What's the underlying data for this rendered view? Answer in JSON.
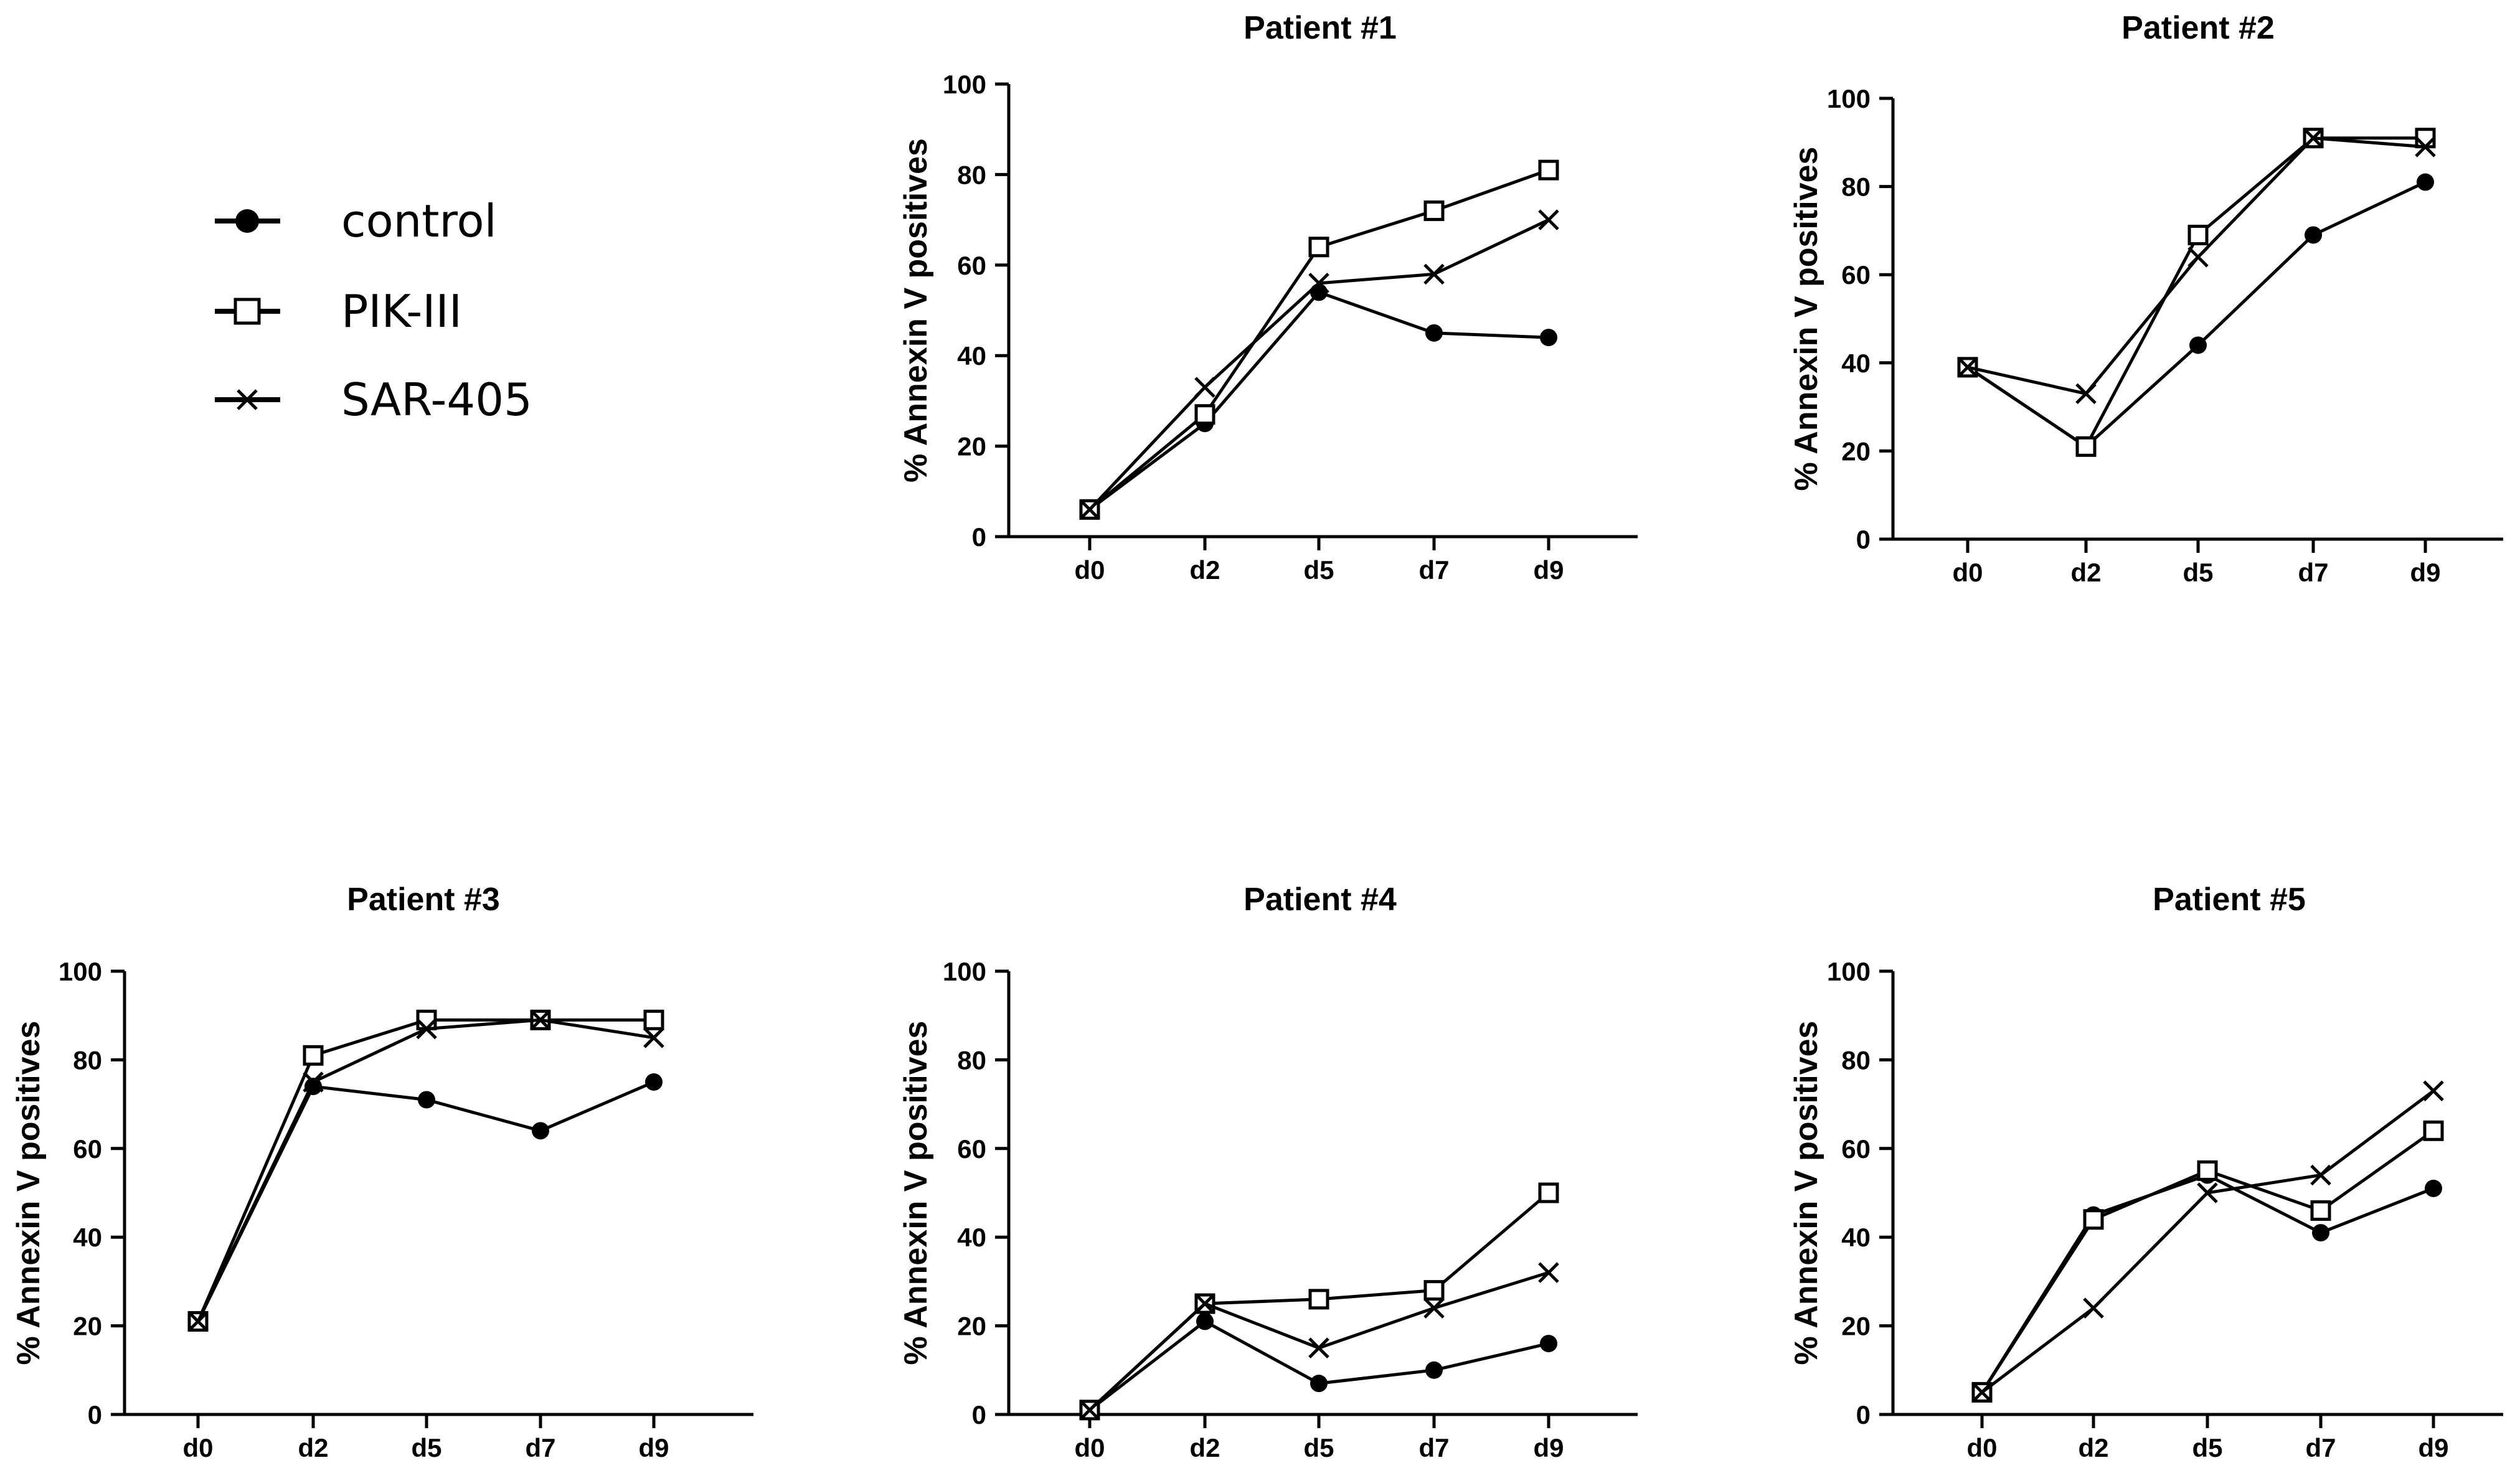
{
  "legend": [
    {
      "name": "control",
      "marker": "circle"
    },
    {
      "name": "PIK-III",
      "marker": "square"
    },
    {
      "name": "SAR-405",
      "marker": "x"
    }
  ],
  "chart_data": [
    {
      "type": "line",
      "title": "Patient #1",
      "xlabel": "",
      "ylabel": "% Annexin V positives",
      "categories": [
        "d0",
        "d2",
        "d5",
        "d7",
        "d9"
      ],
      "ylim": [
        0,
        100
      ],
      "yticks": [
        0,
        20,
        40,
        60,
        80,
        100
      ],
      "series": [
        {
          "name": "control",
          "values": [
            6,
            25,
            54,
            45,
            44
          ]
        },
        {
          "name": "PIK-III",
          "values": [
            6,
            27,
            64,
            72,
            81
          ]
        },
        {
          "name": "SAR-405",
          "values": [
            6,
            33,
            56,
            58,
            70
          ]
        }
      ]
    },
    {
      "type": "line",
      "title": "Patient #2",
      "xlabel": "",
      "ylabel": "% Annexin V positives",
      "categories": [
        "d0",
        "d2",
        "d5",
        "d7",
        "d9"
      ],
      "ylim": [
        0,
        100
      ],
      "yticks": [
        0,
        20,
        40,
        60,
        80,
        100
      ],
      "series": [
        {
          "name": "control",
          "values": [
            39,
            21,
            44,
            69,
            81
          ]
        },
        {
          "name": "PIK-III",
          "values": [
            39,
            21,
            69,
            91,
            91
          ]
        },
        {
          "name": "SAR-405",
          "values": [
            39,
            33,
            64,
            91,
            89
          ]
        }
      ]
    },
    {
      "type": "line",
      "title": "Patient #3",
      "xlabel": "",
      "ylabel": "% Annexin V positives",
      "categories": [
        "d0",
        "d2",
        "d5",
        "d7",
        "d9"
      ],
      "ylim": [
        0,
        100
      ],
      "yticks": [
        0,
        20,
        40,
        60,
        80,
        100
      ],
      "series": [
        {
          "name": "control",
          "values": [
            21,
            74,
            71,
            64,
            75
          ]
        },
        {
          "name": "PIK-III",
          "values": [
            21,
            81,
            89,
            89,
            89
          ]
        },
        {
          "name": "SAR-405",
          "values": [
            21,
            75,
            87,
            89,
            85
          ]
        }
      ]
    },
    {
      "type": "line",
      "title": "Patient #4",
      "xlabel": "",
      "ylabel": "% Annexin V positives",
      "categories": [
        "d0",
        "d2",
        "d5",
        "d7",
        "d9"
      ],
      "ylim": [
        0,
        100
      ],
      "yticks": [
        0,
        20,
        40,
        60,
        80,
        100
      ],
      "series": [
        {
          "name": "control",
          "values": [
            1,
            21,
            7,
            10,
            16
          ]
        },
        {
          "name": "PIK-III",
          "values": [
            1,
            25,
            26,
            28,
            50
          ]
        },
        {
          "name": "SAR-405",
          "values": [
            1,
            25,
            15,
            24,
            32
          ]
        }
      ]
    },
    {
      "type": "line",
      "title": "Patient #5",
      "xlabel": "",
      "ylabel": "% Annexin V positives",
      "categories": [
        "d0",
        "d2",
        "d5",
        "d7",
        "d9"
      ],
      "ylim": [
        0,
        100
      ],
      "yticks": [
        0,
        20,
        40,
        60,
        80,
        100
      ],
      "series": [
        {
          "name": "control",
          "values": [
            5,
            45,
            54,
            41,
            51
          ]
        },
        {
          "name": "PIK-III",
          "values": [
            5,
            44,
            55,
            46,
            64
          ]
        },
        {
          "name": "SAR-405",
          "values": [
            5,
            24,
            50,
            54,
            73
          ]
        }
      ]
    }
  ]
}
